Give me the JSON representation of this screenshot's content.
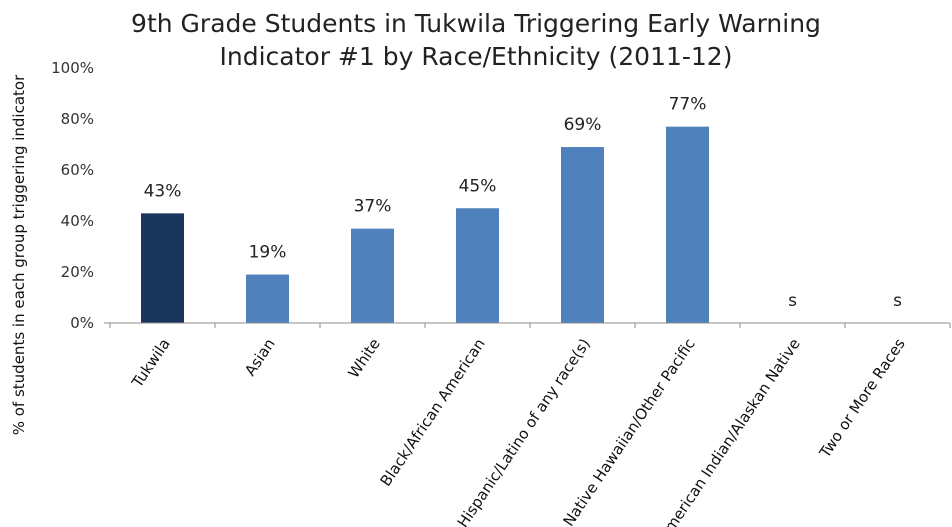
{
  "chart_data": {
    "type": "bar",
    "title_lines": [
      "9th Grade Students in Tukwila Triggering Early Warning",
      "Indicator #1 by Race/Ethnicity (2011-12)"
    ],
    "ylabel": "% of students in each group triggering indicator",
    "xlabel": "",
    "ylim": [
      0,
      100
    ],
    "yticks": [
      "0%",
      "20%",
      "40%",
      "60%",
      "80%",
      "100%"
    ],
    "ytick_values": [
      0,
      20,
      40,
      60,
      80,
      100
    ],
    "grid": false,
    "categories": [
      "Tukwila",
      "Asian",
      "White",
      "Black/African American",
      "Hispanic/Latino of any race(s)",
      "Native Hawaiian/Other Pacific",
      "American Indian/Alaskan Native",
      "Two or More Races"
    ],
    "values": [
      43,
      19,
      37,
      45,
      69,
      77,
      null,
      null
    ],
    "data_labels": [
      "43%",
      "19%",
      "37%",
      "45%",
      "69%",
      "77%",
      "s",
      "s"
    ],
    "bar_colors": [
      "#1b365d",
      "#4f81bd",
      "#4f81bd",
      "#4f81bd",
      "#4f81bd",
      "#4f81bd",
      "#4f81bd",
      "#4f81bd"
    ]
  }
}
